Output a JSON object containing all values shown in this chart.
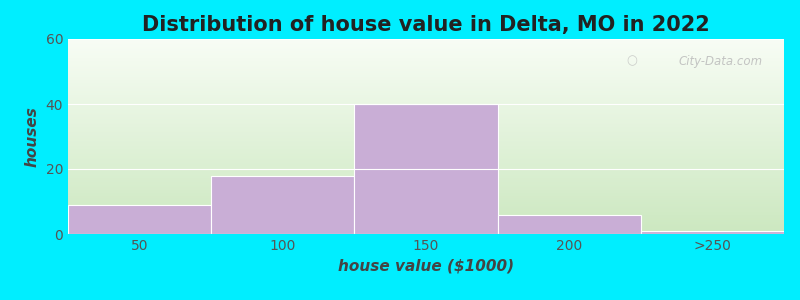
{
  "title": "Distribution of house value in Delta, MO in 2022",
  "xlabel": "house value ($1000)",
  "ylabel": "houses",
  "bar_values": [
    9,
    18,
    40,
    6,
    1
  ],
  "bar_color": "#c9aed6",
  "bar_edgecolor": "#ffffff",
  "bin_edges": [
    0,
    1,
    2,
    3,
    4,
    5
  ],
  "xtick_labels": [
    "50",
    "100",
    "150",
    "200",
    ">250"
  ],
  "ylim": [
    0,
    60
  ],
  "yticks": [
    0,
    20,
    40,
    60
  ],
  "background_outer": "#00eeff",
  "background_plot_topleft": "#e8f5e0",
  "background_plot_topright": "#f5faf0",
  "background_plot_bottom": "#c8e8c0",
  "title_fontsize": 15,
  "axis_fontsize": 11,
  "tick_fontsize": 10,
  "watermark_text": "City-Data.com",
  "watermark_color": "#bbbbbb"
}
